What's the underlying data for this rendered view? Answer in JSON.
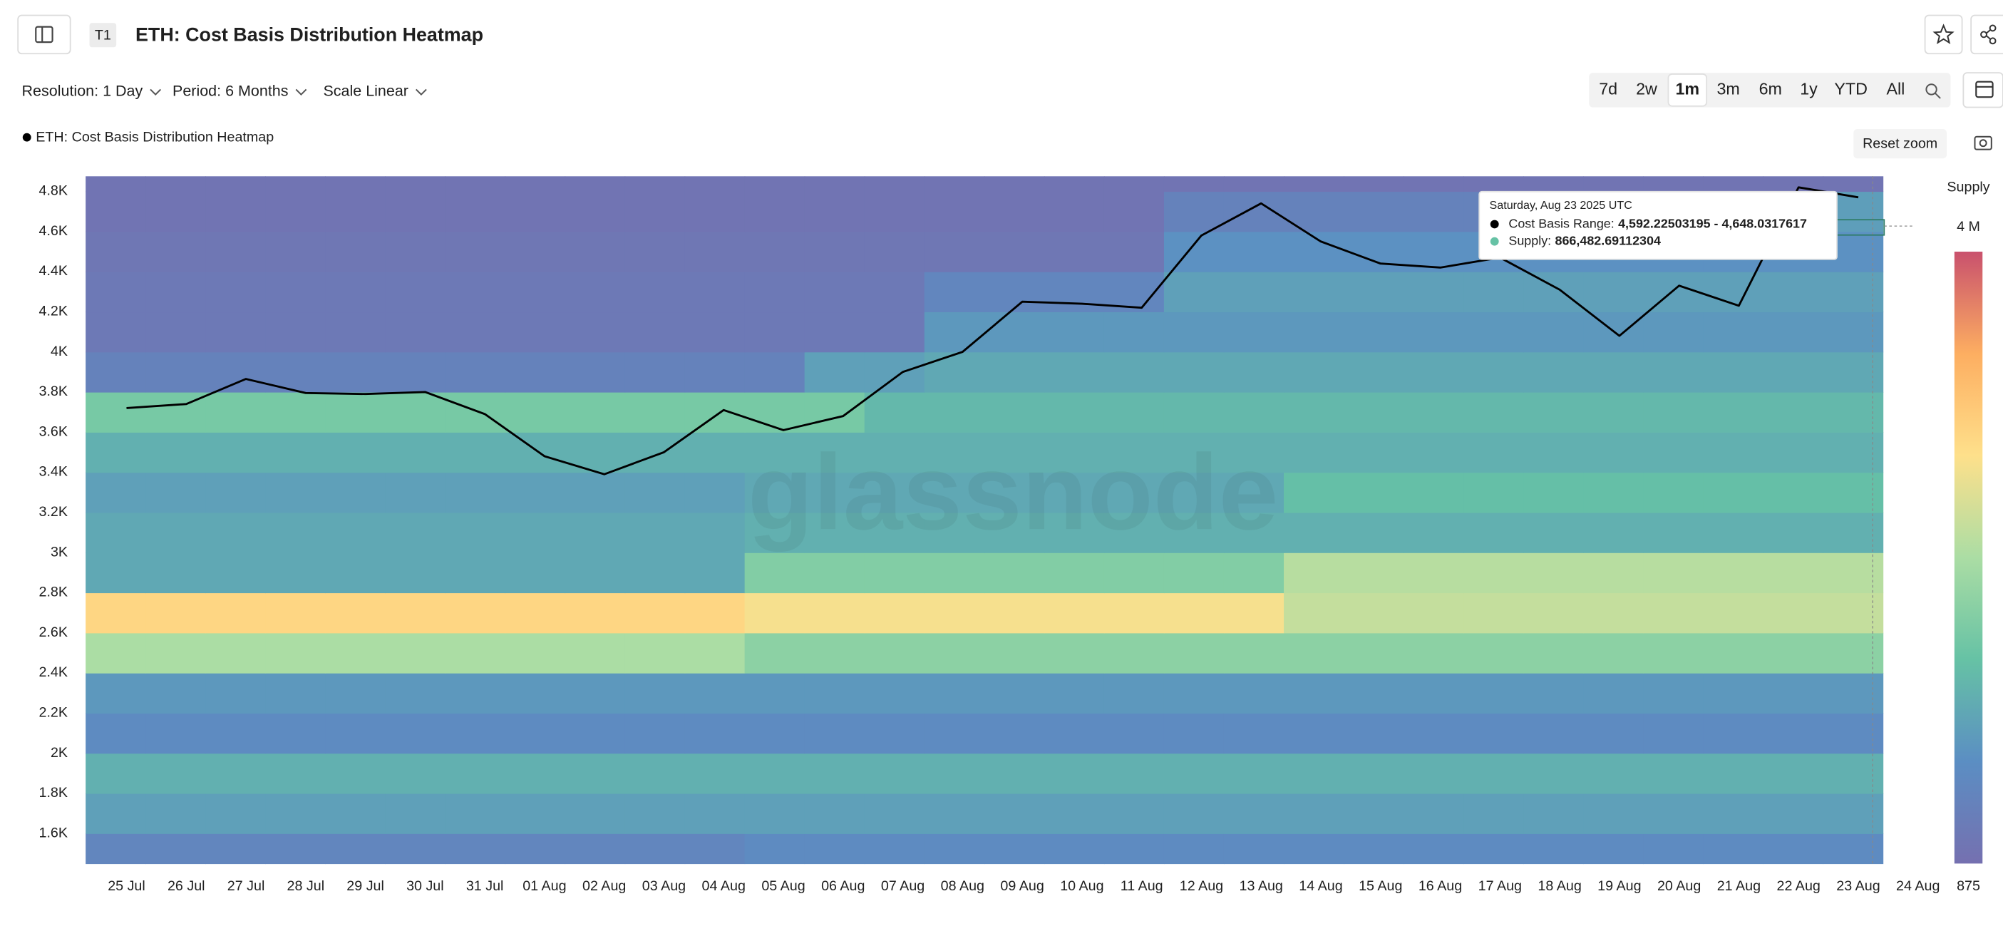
{
  "header": {
    "badge": "T1",
    "title": "ETH: Cost Basis Distribution Heatmap"
  },
  "controls": [
    "Resolution: 1 Day",
    "Period: 6 Months",
    "Scale Linear"
  ],
  "ranges": [
    "7d",
    "2w",
    "1m",
    "3m",
    "6m",
    "1y",
    "YTD",
    "All"
  ],
  "active_range": 2,
  "reset_zoom": "Reset zoom",
  "watermark": "glassnode",
  "tooltip": {
    "date": "Saturday, Aug 23 2025 UTC",
    "rows": [
      {
        "label": "Cost Basis Range:",
        "value": "4,592.22503195 - 4,648.0317617",
        "color": "#000000"
      },
      {
        "label": "Supply:",
        "value": "866,482.69112304",
        "color": "#66c2a5"
      }
    ]
  },
  "chart_data": {
    "type": "heatmap",
    "x": [
      "25 Jul",
      "26 Jul",
      "27 Jul",
      "28 Jul",
      "29 Jul",
      "30 Jul",
      "31 Jul",
      "01 Aug",
      "02 Aug",
      "03 Aug",
      "04 Aug",
      "05 Aug",
      "06 Aug",
      "07 Aug",
      "08 Aug",
      "09 Aug",
      "10 Aug",
      "11 Aug",
      "12 Aug",
      "13 Aug",
      "14 Aug",
      "15 Aug",
      "16 Aug",
      "17 Aug",
      "18 Aug",
      "19 Aug",
      "20 Aug",
      "21 Aug",
      "22 Aug",
      "23 Aug",
      "24 Aug"
    ],
    "ylim": [
      1450,
      4875
    ],
    "yticks": [
      {
        "value": 1600,
        "label": "1.6K"
      },
      {
        "value": 1800,
        "label": "1.8K"
      },
      {
        "value": 2000,
        "label": "2K"
      },
      {
        "value": 2200,
        "label": "2.2K"
      },
      {
        "value": 2400,
        "label": "2.4K"
      },
      {
        "value": 2600,
        "label": "2.6K"
      },
      {
        "value": 2800,
        "label": "2.8K"
      },
      {
        "value": 3000,
        "label": "3K"
      },
      {
        "value": 3200,
        "label": "3.2K"
      },
      {
        "value": 3400,
        "label": "3.4K"
      },
      {
        "value": 3600,
        "label": "3.6K"
      },
      {
        "value": 3800,
        "label": "3.8K"
      },
      {
        "value": 4000,
        "label": "4K"
      },
      {
        "value": 4200,
        "label": "4.2K"
      },
      {
        "value": 4400,
        "label": "4.4K"
      },
      {
        "value": 4600,
        "label": "4.6K"
      },
      {
        "value": 4800,
        "label": "4.8K"
      }
    ],
    "grid": false,
    "ybins": [
      1450,
      1600,
      1800,
      2000,
      2200,
      2400,
      2600,
      2800,
      3000,
      3200,
      3400,
      3600,
      3800,
      4000,
      4200,
      4400,
      4600,
      4800,
      4875
    ],
    "z": [
      [
        500000.0,
        500000.0,
        500000.0,
        500000.0,
        500000.0,
        500000.0,
        500000.0,
        500000.0,
        500000.0,
        500000.0,
        500000.0,
        600000.0,
        600000.0,
        600000.0,
        600000.0,
        600000.0,
        600000.0,
        600000.0,
        600000.0,
        600000.0,
        600000.0,
        600000.0,
        600000.0,
        600000.0,
        600000.0,
        600000.0,
        600000.0,
        600000.0,
        600000.0,
        600000.0,
        null
      ],
      [
        900000.0,
        900000.0,
        900000.0,
        900000.0,
        900000.0,
        900000.0,
        900000.0,
        900000.0,
        900000.0,
        900000.0,
        900000.0,
        900000.0,
        900000.0,
        900000.0,
        900000.0,
        900000.0,
        900000.0,
        900000.0,
        900000.0,
        900000.0,
        900000.0,
        900000.0,
        900000.0,
        900000.0,
        900000.0,
        900000.0,
        900000.0,
        900000.0,
        900000.0,
        900000.0,
        null
      ],
      [
        1100000.0,
        1100000.0,
        1100000.0,
        1100000.0,
        1100000.0,
        1100000.0,
        1100000.0,
        1100000.0,
        1100000.0,
        1100000.0,
        1100000.0,
        1100000.0,
        1100000.0,
        1100000.0,
        1100000.0,
        1100000.0,
        1100000.0,
        1100000.0,
        1100000.0,
        1100000.0,
        1100000.0,
        1100000.0,
        1100000.0,
        1100000.0,
        1100000.0,
        1100000.0,
        1100000.0,
        1100000.0,
        1100000.0,
        1100000.0,
        null
      ],
      [
        600000.0,
        600000.0,
        600000.0,
        600000.0,
        600000.0,
        600000.0,
        600000.0,
        600000.0,
        600000.0,
        600000.0,
        600000.0,
        600000.0,
        600000.0,
        600000.0,
        600000.0,
        600000.0,
        600000.0,
        600000.0,
        600000.0,
        600000.0,
        600000.0,
        600000.0,
        600000.0,
        600000.0,
        600000.0,
        600000.0,
        600000.0,
        600000.0,
        600000.0,
        600000.0,
        null
      ],
      [
        800000.0,
        800000.0,
        800000.0,
        800000.0,
        800000.0,
        800000.0,
        800000.0,
        800000.0,
        800000.0,
        800000.0,
        800000.0,
        800000.0,
        800000.0,
        800000.0,
        800000.0,
        800000.0,
        800000.0,
        800000.0,
        800000.0,
        800000.0,
        800000.0,
        800000.0,
        800000.0,
        800000.0,
        800000.0,
        800000.0,
        800000.0,
        800000.0,
        800000.0,
        800000.0,
        null
      ],
      [
        2000000.0,
        2000000.0,
        2000000.0,
        2000000.0,
        2000000.0,
        2000000.0,
        2000000.0,
        2000000.0,
        2000000.0,
        2000000.0,
        2000000.0,
        1700000.0,
        1700000.0,
        1700000.0,
        1700000.0,
        1700000.0,
        1700000.0,
        1700000.0,
        1700000.0,
        1700000.0,
        1700000.0,
        1700000.0,
        1700000.0,
        1700000.0,
        1700000.0,
        1700000.0,
        1700000.0,
        1700000.0,
        1700000.0,
        1700000.0,
        null
      ],
      [
        2800000.0,
        2800000.0,
        2800000.0,
        2800000.0,
        2800000.0,
        2800000.0,
        2800000.0,
        2800000.0,
        2800000.0,
        2800000.0,
        2800000.0,
        2600000.0,
        2600000.0,
        2600000.0,
        2600000.0,
        2600000.0,
        2600000.0,
        2600000.0,
        2600000.0,
        2600000.0,
        2200000.0,
        2200000.0,
        2200000.0,
        2200000.0,
        2200000.0,
        2200000.0,
        2200000.0,
        2200000.0,
        2200000.0,
        2200000.0,
        null
      ],
      [
        1000000.0,
        1000000.0,
        1000000.0,
        1000000.0,
        1000000.0,
        1000000.0,
        1000000.0,
        1000000.0,
        1000000.0,
        1000000.0,
        1000000.0,
        1600000.0,
        1600000.0,
        1600000.0,
        1600000.0,
        1600000.0,
        1600000.0,
        1600000.0,
        1600000.0,
        1600000.0,
        2100000.0,
        2100000.0,
        2100000.0,
        2100000.0,
        2100000.0,
        2100000.0,
        2100000.0,
        2100000.0,
        2100000.0,
        2100000.0,
        null
      ],
      [
        1000000.0,
        1000000.0,
        1000000.0,
        1000000.0,
        1000000.0,
        1000000.0,
        1000000.0,
        1000000.0,
        1000000.0,
        1000000.0,
        1000000.0,
        1100000.0,
        1100000.0,
        1100000.0,
        1100000.0,
        1100000.0,
        1100000.0,
        1100000.0,
        1100000.0,
        1100000.0,
        1100000.0,
        1100000.0,
        1100000.0,
        1100000.0,
        1100000.0,
        1100000.0,
        1100000.0,
        1100000.0,
        1100000.0,
        1100000.0,
        null
      ],
      [
        900000.0,
        900000.0,
        900000.0,
        900000.0,
        900000.0,
        900000.0,
        900000.0,
        900000.0,
        900000.0,
        900000.0,
        900000.0,
        1000000.0,
        1000000.0,
        1000000.0,
        1000000.0,
        1000000.0,
        1000000.0,
        1000000.0,
        1000000.0,
        1000000.0,
        1300000.0,
        1300000.0,
        1300000.0,
        1300000.0,
        1300000.0,
        1300000.0,
        1300000.0,
        1300000.0,
        1300000.0,
        1300000.0,
        null
      ],
      [
        1100000.0,
        1100000.0,
        1100000.0,
        1100000.0,
        1100000.0,
        1100000.0,
        1100000.0,
        1100000.0,
        1100000.0,
        1100000.0,
        1100000.0,
        1100000.0,
        1100000.0,
        1100000.0,
        1100000.0,
        1100000.0,
        1100000.0,
        1100000.0,
        1100000.0,
        1100000.0,
        1100000.0,
        1100000.0,
        1100000.0,
        1100000.0,
        1100000.0,
        1100000.0,
        1100000.0,
        1100000.0,
        1100000.0,
        1100000.0,
        null
      ],
      [
        1500000.0,
        1500000.0,
        1500000.0,
        1500000.0,
        1500000.0,
        1500000.0,
        1500000.0,
        1500000.0,
        1500000.0,
        1500000.0,
        1500000.0,
        1500000.0,
        1500000.0,
        1200000.0,
        1200000.0,
        1200000.0,
        1200000.0,
        1200000.0,
        1200000.0,
        1200000.0,
        1200000.0,
        1200000.0,
        1200000.0,
        1200000.0,
        1200000.0,
        1200000.0,
        1200000.0,
        1200000.0,
        1200000.0,
        1200000.0,
        null
      ],
      [
        400000.0,
        400000.0,
        400000.0,
        400000.0,
        400000.0,
        400000.0,
        400000.0,
        400000.0,
        400000.0,
        400000.0,
        400000.0,
        400000.0,
        900000.0,
        900000.0,
        1000000.0,
        1000000.0,
        1000000.0,
        1000000.0,
        1000000.0,
        1000000.0,
        1000000.0,
        1000000.0,
        1000000.0,
        1000000.0,
        1000000.0,
        1000000.0,
        1000000.0,
        1000000.0,
        1000000.0,
        1000000.0,
        null
      ],
      [
        200000.0,
        200000.0,
        200000.0,
        200000.0,
        200000.0,
        200000.0,
        200000.0,
        200000.0,
        200000.0,
        200000.0,
        200000.0,
        200000.0,
        200000.0,
        200000.0,
        800000.0,
        800000.0,
        800000.0,
        800000.0,
        800000.0,
        800000.0,
        800000.0,
        800000.0,
        800000.0,
        800000.0,
        800000.0,
        800000.0,
        800000.0,
        800000.0,
        800000.0,
        800000.0,
        null
      ],
      [
        200000.0,
        200000.0,
        200000.0,
        200000.0,
        200000.0,
        200000.0,
        200000.0,
        200000.0,
        200000.0,
        200000.0,
        200000.0,
        200000.0,
        200000.0,
        200000.0,
        500000.0,
        500000.0,
        500000.0,
        500000.0,
        900000.0,
        900000.0,
        900000.0,
        900000.0,
        900000.0,
        900000.0,
        900000.0,
        900000.0,
        900000.0,
        900000.0,
        900000.0,
        900000.0,
        null
      ],
      [
        150000.0,
        150000.0,
        150000.0,
        150000.0,
        150000.0,
        150000.0,
        150000.0,
        150000.0,
        150000.0,
        150000.0,
        150000.0,
        150000.0,
        150000.0,
        150000.0,
        150000.0,
        150000.0,
        150000.0,
        150000.0,
        700000.0,
        700000.0,
        700000.0,
        700000.0,
        700000.0,
        700000.0,
        700000.0,
        700000.0,
        700000.0,
        700000.0,
        700000.0,
        700000.0,
        null
      ],
      [
        100000.0,
        100000.0,
        100000.0,
        100000.0,
        100000.0,
        100000.0,
        100000.0,
        100000.0,
        100000.0,
        100000.0,
        100000.0,
        100000.0,
        100000.0,
        100000.0,
        100000.0,
        100000.0,
        100000.0,
        100000.0,
        400000.0,
        400000.0,
        400000.0,
        400000.0,
        400000.0,
        400000.0,
        400000.0,
        400000.0,
        400000.0,
        400000.0,
        400000.0,
        866482.69112304,
        null
      ],
      [
        100000.0,
        100000.0,
        100000.0,
        100000.0,
        100000.0,
        100000.0,
        100000.0,
        100000.0,
        100000.0,
        100000.0,
        100000.0,
        100000.0,
        100000.0,
        100000.0,
        100000.0,
        100000.0,
        100000.0,
        100000.0,
        100000.0,
        100000.0,
        100000.0,
        100000.0,
        100000.0,
        100000.0,
        100000.0,
        100000.0,
        100000.0,
        100000.0,
        100000.0,
        100000.0,
        null
      ]
    ],
    "colorscale": [
      "#7570b0",
      "#5b8ec3",
      "#66c2a5",
      "#abdda4",
      "#fee08b",
      "#fdae61",
      "#c9516d"
    ],
    "colorbar": {
      "label": "Supply",
      "ticks": [
        875,
        {
          "value": 4000000,
          "label": "4 M"
        }
      ]
    },
    "series": [
      {
        "name": "ETH: Cost Basis Distribution Heatmap",
        "color": "#000000",
        "values": [
          3720,
          3740,
          3865,
          3795,
          3790,
          3800,
          3690,
          3480,
          3390,
          3500,
          3710,
          3610,
          3680,
          3900,
          4000,
          4250,
          4240,
          4220,
          4580,
          4740,
          4550,
          4440,
          4420,
          4470,
          4310,
          4080,
          4330,
          4230,
          4820,
          4770,
          null
        ]
      }
    ]
  }
}
